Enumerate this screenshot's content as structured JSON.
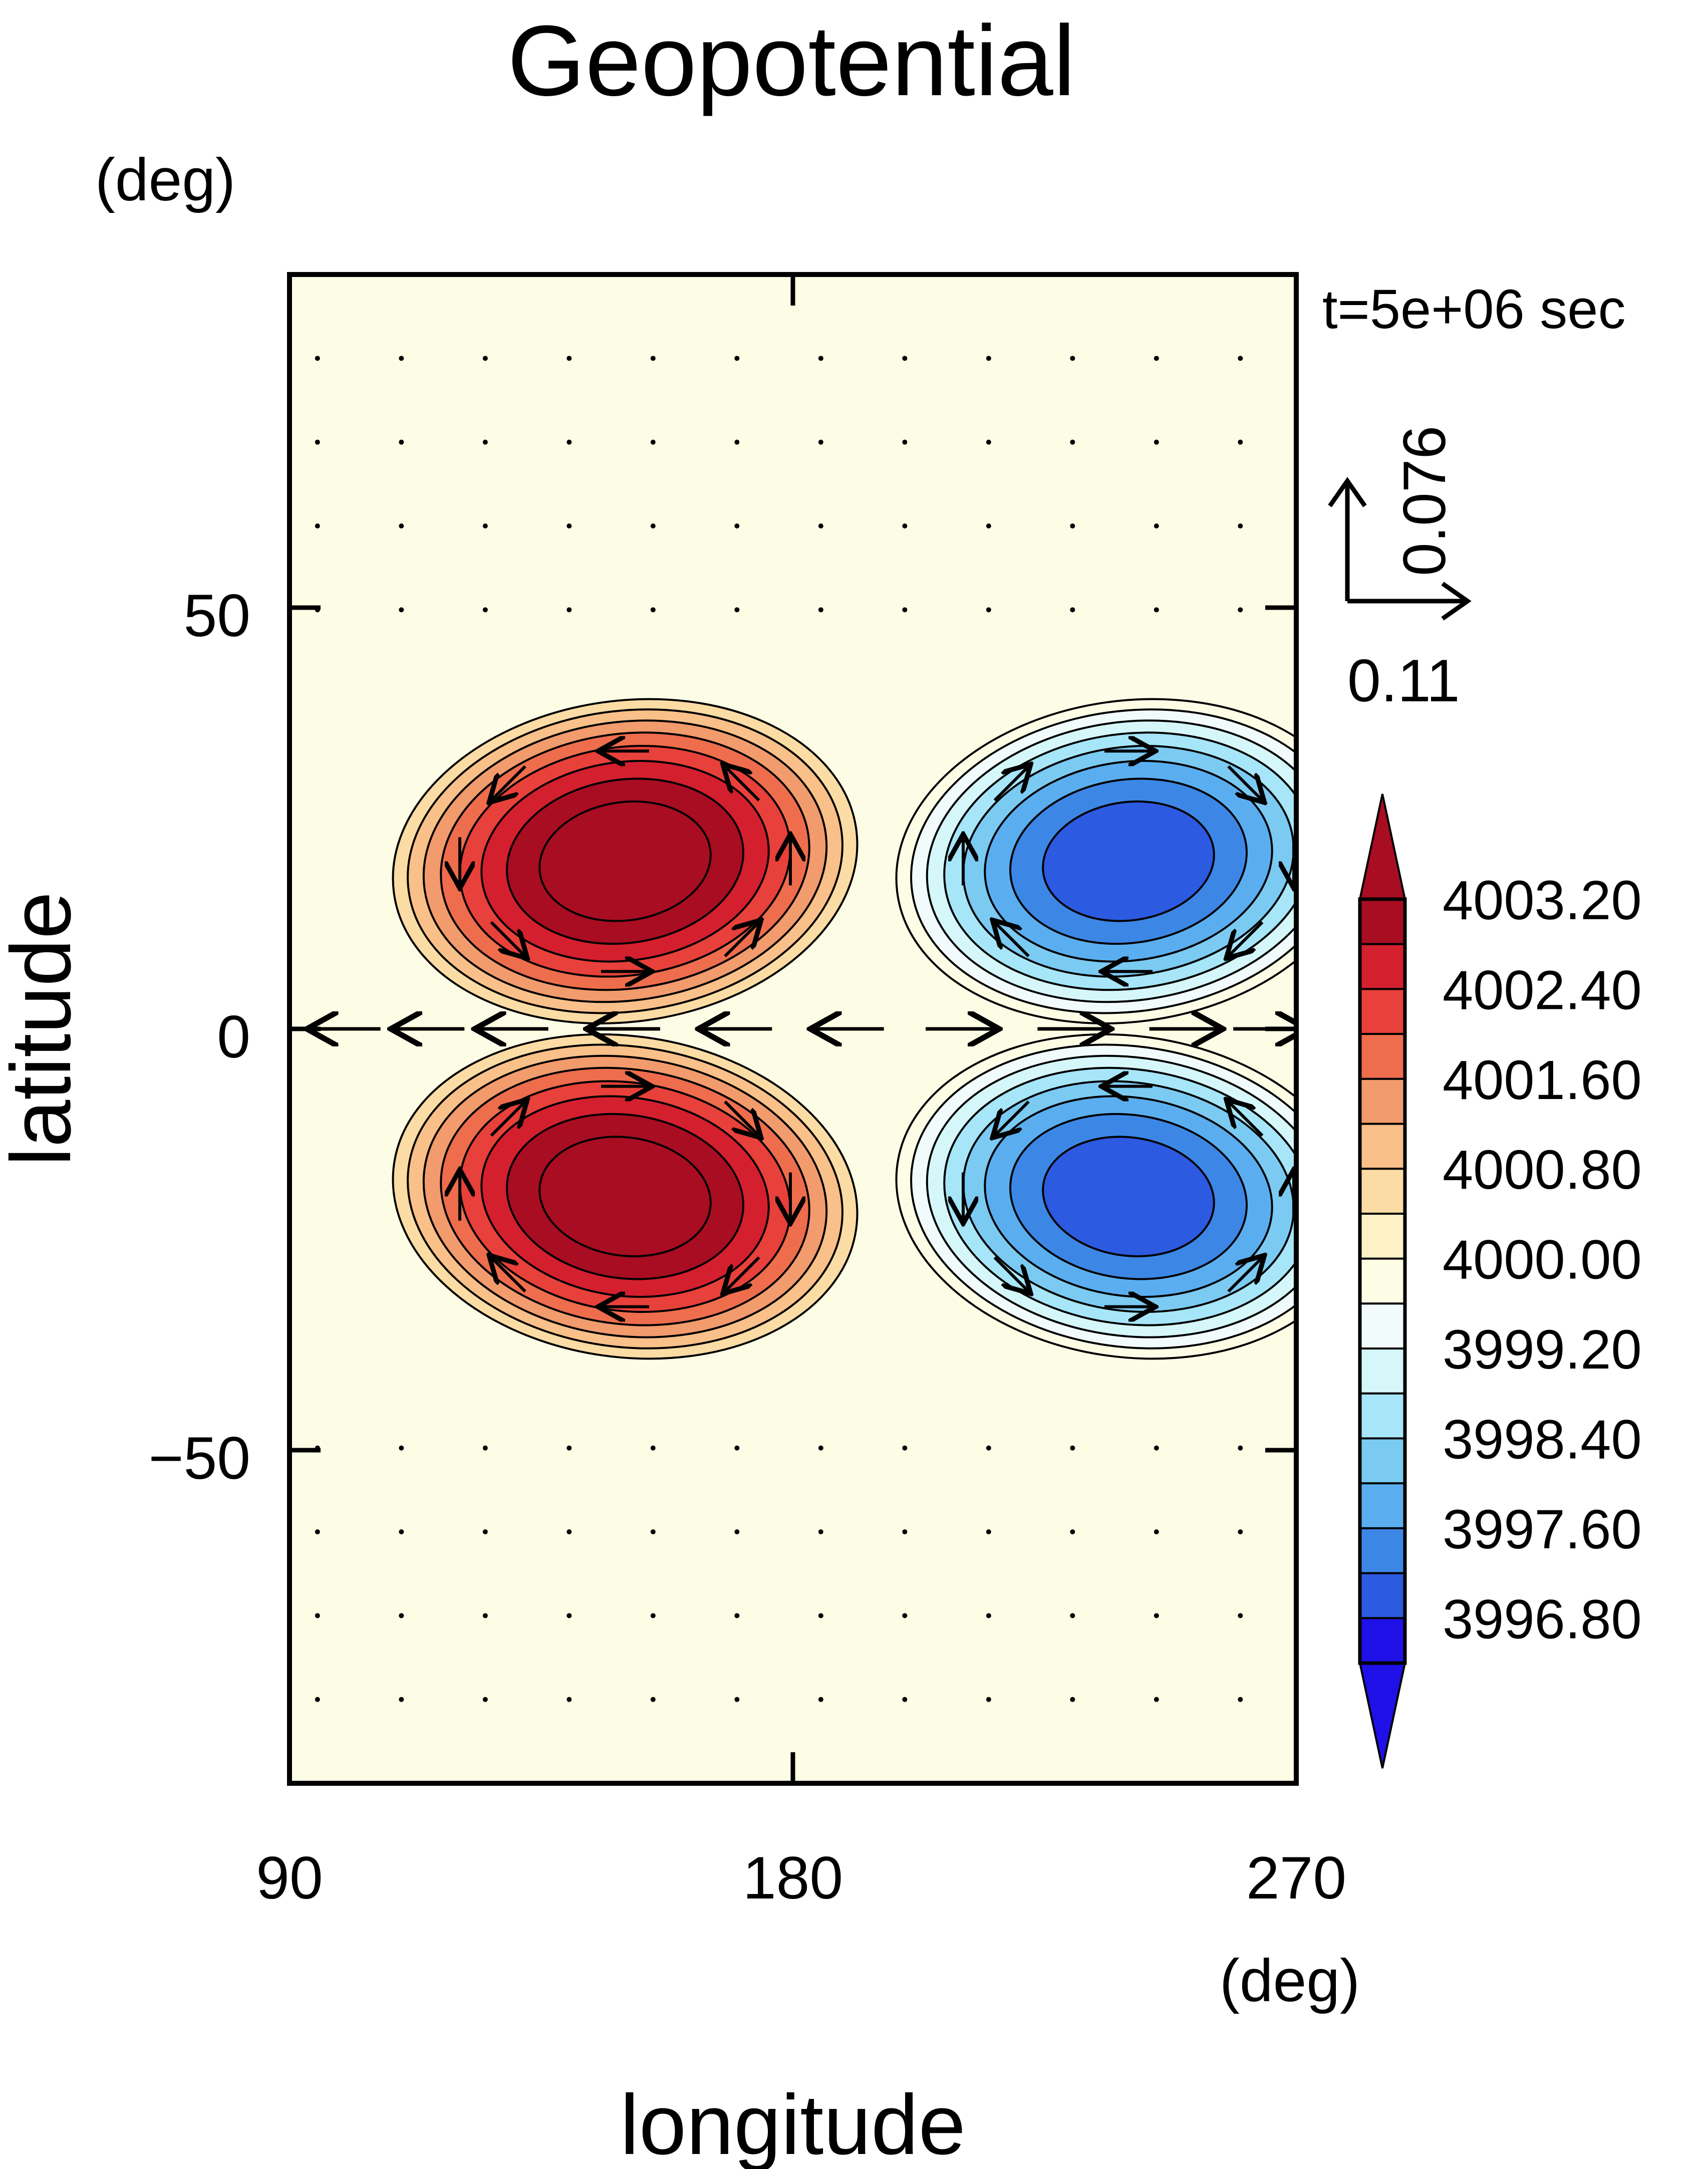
{
  "chart_data": {
    "type": "heatmap",
    "title": "Geopotential",
    "xlabel": "longitude",
    "ylabel": "latitude",
    "x_unit": "(deg)",
    "y_unit": "(deg)",
    "time_label": "t=5e+06 sec",
    "xlim": [
      90,
      270
    ],
    "ylim": [
      -90,
      90
    ],
    "x_ticks": [
      90,
      180,
      270
    ],
    "x_tick_labels": [
      "90",
      "180",
      "270"
    ],
    "y_ticks": [
      50,
      0,
      -50
    ],
    "y_tick_labels": [
      "50",
      "0",
      "−50"
    ],
    "reference_vector": {
      "u_label": "0.11",
      "v_label": "0.076",
      "u": 0.11,
      "v": 0.076
    },
    "colorbar": {
      "levels": [
        3996.8,
        3997.6,
        3998.4,
        3999.2,
        4000.0,
        4000.8,
        4001.6,
        4002.4,
        4003.2
      ],
      "labels": [
        "3996.80",
        "3997.60",
        "3998.40",
        "3999.20",
        "4000.00",
        "4000.80",
        "4001.60",
        "4002.40",
        "4003.20"
      ],
      "colors": [
        "#1f10e8",
        "#2c5ae0",
        "#3c87e6",
        "#5aaef0",
        "#7bcaf2",
        "#a6e6f8",
        "#d5f7fa",
        "#f2fbfb",
        "#fdfde6",
        "#fdf2c6",
        "#fbdca4",
        "#f9c089",
        "#f29b6d",
        "#ee6d4d",
        "#e8403a",
        "#d41f2e",
        "#a80d22"
      ],
      "extend": "both"
    },
    "features": [
      {
        "type": "high",
        "lon": 150,
        "lat": 20,
        "value": 4003.4
      },
      {
        "type": "high",
        "lon": 150,
        "lat": -20,
        "value": 4003.4
      },
      {
        "type": "low",
        "lon": 240,
        "lat": 20,
        "value": 3996.6
      },
      {
        "type": "low",
        "lon": 240,
        "lat": -20,
        "value": 3996.6
      }
    ],
    "grid": false
  }
}
